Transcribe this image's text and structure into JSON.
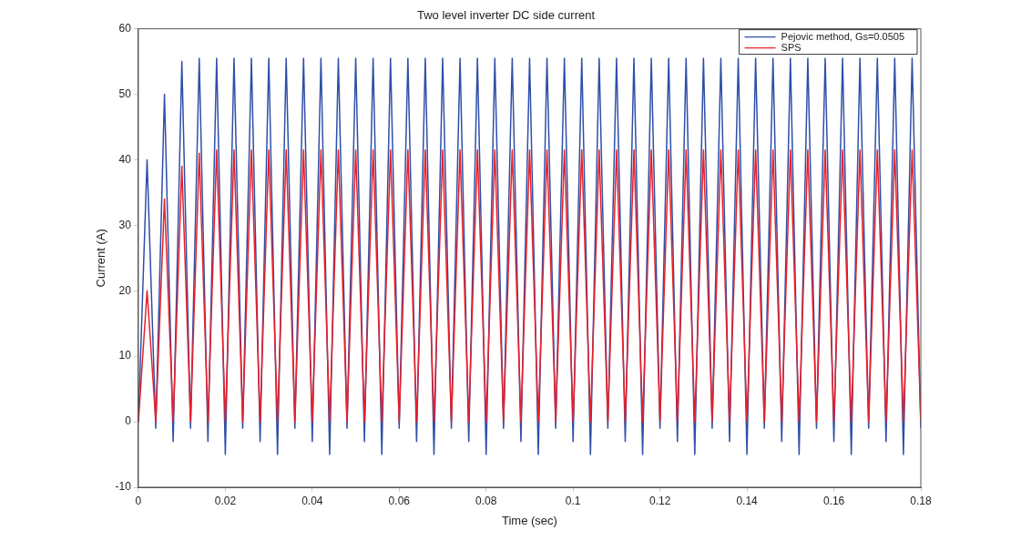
{
  "chart_data": {
    "type": "line",
    "title": "Two level inverter DC side current",
    "xlabel": "Time (sec)",
    "ylabel": "Current (A)",
    "x": [
      0,
      0.002,
      0.004,
      0.006,
      0.008,
      0.01,
      0.012,
      0.014,
      0.016,
      0.018,
      0.02,
      0.022,
      0.024,
      0.026,
      0.028,
      0.03,
      0.032,
      0.034,
      0.036,
      0.038,
      0.04,
      0.042,
      0.044,
      0.046,
      0.048,
      0.05,
      0.052,
      0.054,
      0.056,
      0.058,
      0.06,
      0.062,
      0.064,
      0.066,
      0.068,
      0.07,
      0.072,
      0.074,
      0.076,
      0.078,
      0.08,
      0.082,
      0.084,
      0.086,
      0.088,
      0.09,
      0.092,
      0.094,
      0.096,
      0.098,
      0.1,
      0.102,
      0.104,
      0.106,
      0.108,
      0.11,
      0.112,
      0.114,
      0.116,
      0.118,
      0.12,
      0.122,
      0.124,
      0.126,
      0.128,
      0.13,
      0.132,
      0.134,
      0.136,
      0.138,
      0.14,
      0.142,
      0.144,
      0.146,
      0.148,
      0.15,
      0.152,
      0.154,
      0.156,
      0.158,
      0.16,
      0.162,
      0.164,
      0.166,
      0.168,
      0.17,
      0.172,
      0.174,
      0.176,
      0.178,
      0.18
    ],
    "series": [
      {
        "name": "Pejovic method, Gs=0.0505",
        "color": "#2e4fa8",
        "values": [
          0,
          40,
          -1,
          50,
          -3,
          55,
          -1,
          55.5,
          -3,
          55.5,
          -5,
          55.5,
          -1,
          55.5,
          -3,
          55.5,
          -5,
          55.5,
          -1,
          55.5,
          -3,
          55.5,
          -5,
          55.5,
          -1,
          55.5,
          -3,
          55.5,
          -5,
          55.5,
          -1,
          55.5,
          -3,
          55.5,
          -5,
          55.5,
          -1,
          55.5,
          -3,
          55.5,
          -5,
          55.5,
          -1,
          55.5,
          -3,
          55.5,
          -5,
          55.5,
          -1,
          55.5,
          -3,
          55.5,
          -5,
          55.5,
          -1,
          55.5,
          -3,
          55.5,
          -5,
          55.5,
          -1,
          55.5,
          -3,
          55.5,
          -5,
          55.5,
          -1,
          55.5,
          -3,
          55.5,
          -5,
          55.5,
          -1,
          55.5,
          -3,
          55.5,
          -5,
          55.5,
          -1,
          55.5,
          -3,
          55.5,
          -5,
          55.5,
          -1,
          55.5,
          -3,
          55.5,
          -5,
          55.5,
          -1
        ]
      },
      {
        "name": "SPS",
        "color": "#e8202a",
        "values": [
          0,
          20,
          0,
          34,
          0,
          39,
          0,
          41,
          0,
          41.5,
          0,
          41.5,
          0,
          41.5,
          0,
          41.5,
          0,
          41.5,
          0,
          41.5,
          0,
          41.5,
          0,
          41.5,
          0,
          41.5,
          0,
          41.5,
          0,
          41.5,
          0,
          41.5,
          0,
          41.5,
          0,
          41.5,
          0,
          41.5,
          0,
          41.5,
          0,
          41.5,
          0,
          41.5,
          0,
          41.5,
          0,
          41.5,
          0,
          41.5,
          0,
          41.5,
          0,
          41.5,
          0,
          41.5,
          0,
          41.5,
          0,
          41.5,
          0,
          41.5,
          0,
          41.5,
          0,
          41.5,
          0,
          41.5,
          0,
          41.5,
          0,
          41.5,
          0,
          41.5,
          0,
          41.5,
          0,
          41.5,
          0,
          41.5,
          0,
          41.5,
          0,
          41.5,
          0,
          41.5,
          0,
          41.5,
          0,
          41.5,
          0
        ]
      }
    ],
    "xlim": [
      0,
      0.18
    ],
    "xticks": [
      0,
      0.02,
      0.04,
      0.06,
      0.08,
      0.1,
      0.12,
      0.14,
      0.16,
      0.18
    ],
    "ylim": [
      -10,
      60
    ],
    "yticks": [
      -10,
      0,
      10,
      20,
      30,
      40,
      50,
      60
    ],
    "grid": false,
    "legend": "top right",
    "marker": "none",
    "line_style": "solid"
  }
}
